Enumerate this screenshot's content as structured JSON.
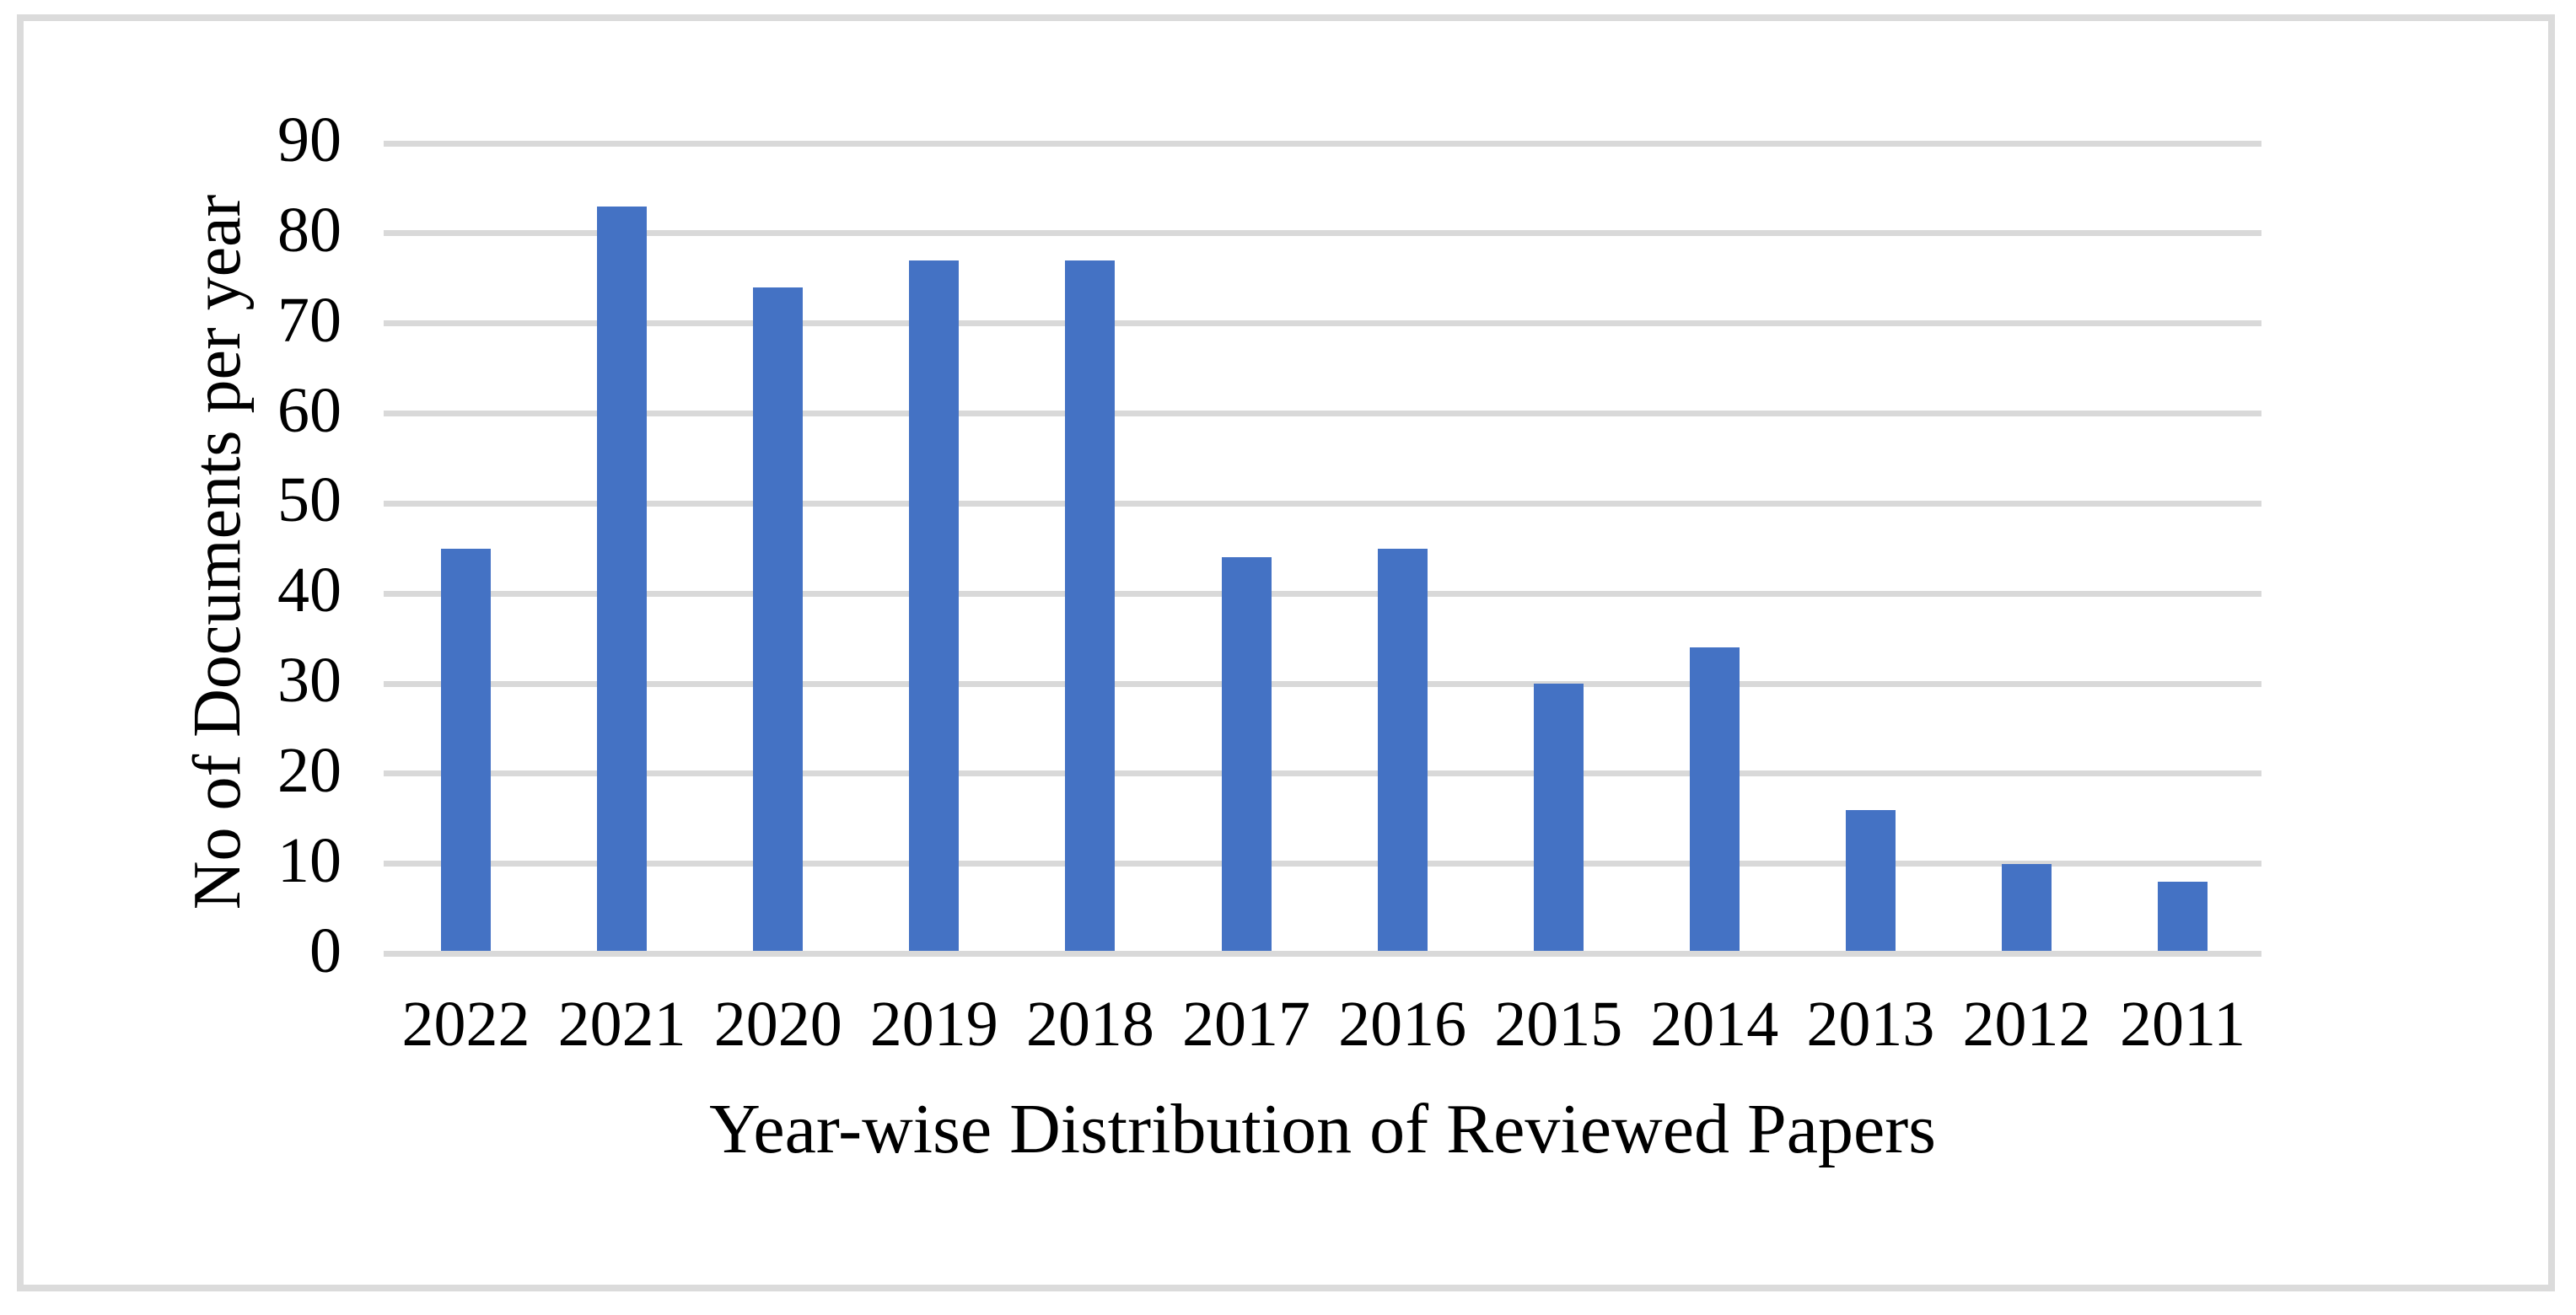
{
  "chart_data": {
    "type": "bar",
    "categories": [
      "2022",
      "2021",
      "2020",
      "2019",
      "2018",
      "2017",
      "2016",
      "2015",
      "2014",
      "2013",
      "2012",
      "2011"
    ],
    "values": [
      45,
      83,
      74,
      77,
      77,
      44,
      45,
      30,
      34,
      16,
      10,
      8
    ],
    "title": "",
    "xlabel": "Year-wise Distribution of Reviewed Papers",
    "ylabel": "No of Documents per year",
    "ylim": [
      0,
      90
    ],
    "yticks": [
      0,
      10,
      20,
      30,
      40,
      50,
      60,
      70,
      80,
      90
    ],
    "grid": "horizontal",
    "legend_position": "none",
    "colors": {
      "bar": "#4472C4",
      "gridline": "#D9D9D9",
      "frame_border": "#DBDBDB",
      "background": "#FFFFFF",
      "text": "#000000"
    }
  }
}
